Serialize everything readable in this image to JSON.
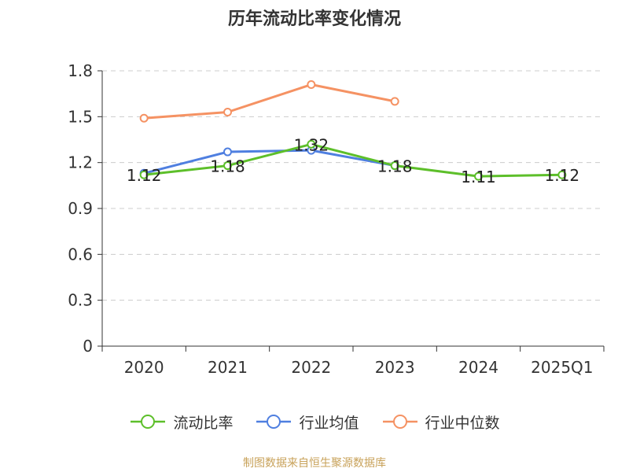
{
  "title": "历年流动比率变化情况",
  "source": "制图数据来自恒生聚源数据库",
  "colors": {
    "current_ratio": "#5dbf2a",
    "industry_avg": "#4f7fe0",
    "industry_median": "#f59263",
    "grid": "#cccccc",
    "axis": "#333333"
  },
  "legend": [
    {
      "label": "流动比率",
      "color": "#5dbf2a"
    },
    {
      "label": "行业均值",
      "color": "#4f7fe0"
    },
    {
      "label": "行业中位数",
      "color": "#f59263"
    }
  ],
  "chart_data": {
    "type": "line",
    "title": "历年流动比率变化情况",
    "categories": [
      "2020",
      "2021",
      "2022",
      "2023",
      "2024",
      "2025Q1"
    ],
    "ylim": [
      0,
      1.8
    ],
    "yticks": [
      "0",
      "0.3",
      "0.6",
      "0.9",
      "1.2",
      "1.5",
      "1.8"
    ],
    "grid": true,
    "legend_position": "bottom",
    "series": [
      {
        "name": "流动比率",
        "values": [
          1.12,
          1.18,
          1.32,
          1.18,
          1.11,
          1.12
        ],
        "labels": [
          "1.12",
          "1.18",
          "1.32",
          "1.18",
          "1.11",
          "1.12"
        ],
        "color": "#5dbf2a"
      },
      {
        "name": "行业均值",
        "values": [
          1.13,
          1.27,
          1.28,
          1.18,
          null,
          null
        ],
        "color": "#4f7fe0"
      },
      {
        "name": "行业中位数",
        "values": [
          1.49,
          1.53,
          1.71,
          1.6,
          null,
          null
        ],
        "color": "#f59263"
      }
    ]
  }
}
